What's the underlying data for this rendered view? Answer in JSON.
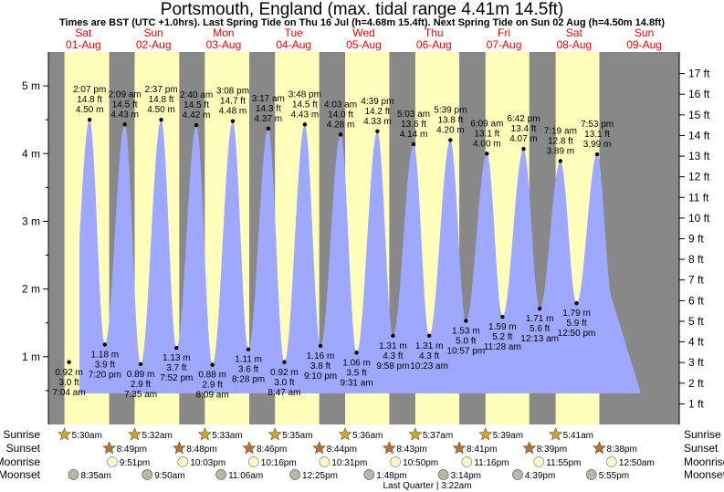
{
  "title": "Portsmouth, England (max. tidal range 4.41m 14.5ft)",
  "subtitle": "Times are BST (UTC +1.0hrs). Last Spring Tide on Thu 16 Jul (h=4.68m 15.4ft). Next Spring Tide on Sun 02 Aug (h=4.50m 14.8ft)",
  "chart_data": {
    "type": "area",
    "x_range_hours": [
      0,
      216
    ],
    "ylim_m": [
      0,
      5.5
    ],
    "yticks_m": [
      {
        "v": 1,
        "label": "1 m"
      },
      {
        "v": 2,
        "label": "2 m"
      },
      {
        "v": 3,
        "label": "3 m"
      },
      {
        "v": 4,
        "label": "4 m"
      },
      {
        "v": 5,
        "label": "5 m"
      }
    ],
    "yticks_ft": [
      {
        "v": 1,
        "label": "1 ft"
      },
      {
        "v": 2,
        "label": "2 ft"
      },
      {
        "v": 3,
        "label": "3 ft"
      },
      {
        "v": 4,
        "label": "4 ft"
      },
      {
        "v": 5,
        "label": "5 ft"
      },
      {
        "v": 6,
        "label": "6 ft"
      },
      {
        "v": 7,
        "label": "7 ft"
      },
      {
        "v": 8,
        "label": "8 ft"
      },
      {
        "v": 9,
        "label": "9 ft"
      },
      {
        "v": 10,
        "label": "10 ft"
      },
      {
        "v": 11,
        "label": "11 ft"
      },
      {
        "v": 12,
        "label": "12 ft"
      },
      {
        "v": 13,
        "label": "13 ft"
      },
      {
        "v": 14,
        "label": "14 ft"
      },
      {
        "v": 15,
        "label": "15 ft"
      },
      {
        "v": 16,
        "label": "16 ft"
      },
      {
        "v": 17,
        "label": "17 ft"
      }
    ],
    "days": [
      {
        "name": "Sat",
        "date": "01-Aug",
        "start": 0
      },
      {
        "name": "Sun",
        "date": "02-Aug",
        "start": 24
      },
      {
        "name": "Mon",
        "date": "03-Aug",
        "start": 48
      },
      {
        "name": "Tue",
        "date": "04-Aug",
        "start": 72
      },
      {
        "name": "Wed",
        "date": "05-Aug",
        "start": 96
      },
      {
        "name": "Thu",
        "date": "06-Aug",
        "start": 120
      },
      {
        "name": "Fri",
        "date": "07-Aug",
        "start": 144
      },
      {
        "name": "Sat",
        "date": "08-Aug",
        "start": 168
      },
      {
        "name": "Sun",
        "date": "09-Aug",
        "start": 192
      }
    ],
    "tides": [
      {
        "t": -0.9,
        "h": 4.45,
        "type": "high",
        "time": "",
        "ft": ""
      },
      {
        "t": 7.067,
        "h": 0.92,
        "type": "low",
        "time": "7:04 am",
        "ft": "3.0 ft"
      },
      {
        "t": 14.117,
        "h": 4.5,
        "type": "high",
        "time": "2:07 pm",
        "ft": "14.8 ft"
      },
      {
        "t": 19.333,
        "h": 1.18,
        "type": "low",
        "time": "7:20 pm",
        "ft": "3.9 ft"
      },
      {
        "t": 26.15,
        "h": 4.43,
        "type": "high",
        "time": "2:09 am",
        "ft": "14.5 ft"
      },
      {
        "t": 31.583,
        "h": 0.89,
        "type": "low",
        "time": "7:35 am",
        "ft": "2.9 ft"
      },
      {
        "t": 38.617,
        "h": 4.5,
        "type": "high",
        "time": "2:37 pm",
        "ft": "14.8 ft"
      },
      {
        "t": 43.867,
        "h": 1.13,
        "type": "low",
        "time": "7:52 pm",
        "ft": "3.7 ft"
      },
      {
        "t": 50.667,
        "h": 4.42,
        "type": "high",
        "time": "2:40 am",
        "ft": "14.5 ft"
      },
      {
        "t": 56.15,
        "h": 0.88,
        "type": "low",
        "time": "8:09 am",
        "ft": "2.9 ft"
      },
      {
        "t": 63.133,
        "h": 4.48,
        "type": "high",
        "time": "3:08 pm",
        "ft": "14.7 ft"
      },
      {
        "t": 68.467,
        "h": 1.11,
        "type": "low",
        "time": "8:28 pm",
        "ft": "3.6 ft"
      },
      {
        "t": 75.283,
        "h": 4.37,
        "type": "high",
        "time": "3:17 am",
        "ft": "14.3 ft"
      },
      {
        "t": 80.783,
        "h": 0.92,
        "type": "low",
        "time": "8:47 am",
        "ft": "3.0 ft"
      },
      {
        "t": 87.8,
        "h": 4.43,
        "type": "high",
        "time": "3:48 pm",
        "ft": "14.5 ft"
      },
      {
        "t": 93.167,
        "h": 1.16,
        "type": "low",
        "time": "9:10 pm",
        "ft": "3.8 ft"
      },
      {
        "t": 100.05,
        "h": 4.28,
        "type": "high",
        "time": "4:03 am",
        "ft": "14.0 ft"
      },
      {
        "t": 105.517,
        "h": 1.06,
        "type": "low",
        "time": "9:31 am",
        "ft": "3.5 ft"
      },
      {
        "t": 112.65,
        "h": 4.33,
        "type": "high",
        "time": "4:39 pm",
        "ft": "14.2 ft"
      },
      {
        "t": 117.967,
        "h": 1.31,
        "type": "low",
        "time": "9:58 pm",
        "ft": "4.3 ft"
      },
      {
        "t": 125.05,
        "h": 4.14,
        "type": "high",
        "time": "5:03 am",
        "ft": "13.6 ft"
      },
      {
        "t": 130.383,
        "h": 1.31,
        "type": "low",
        "time": "10:23 am",
        "ft": "4.3 ft"
      },
      {
        "t": 137.65,
        "h": 4.2,
        "type": "high",
        "time": "5:39 pm",
        "ft": "13.8 ft"
      },
      {
        "t": 142.95,
        "h": 1.53,
        "type": "low",
        "time": "10:57 pm",
        "ft": "5.0 ft"
      },
      {
        "t": 150.15,
        "h": 4.0,
        "type": "high",
        "time": "6:09 am",
        "ft": "13.1 ft"
      },
      {
        "t": 155.467,
        "h": 1.59,
        "type": "low",
        "time": "11:28 am",
        "ft": "5.2 ft"
      },
      {
        "t": 162.7,
        "h": 4.07,
        "type": "high",
        "time": "6:42 pm",
        "ft": "13.4 ft"
      },
      {
        "t": 168.217,
        "h": 1.71,
        "type": "low",
        "time": "12:13 am",
        "ft": "5.6 ft"
      },
      {
        "t": 175.317,
        "h": 3.89,
        "type": "high",
        "time": "7:19 am",
        "ft": "12.8 ft"
      },
      {
        "t": 180.833,
        "h": 1.79,
        "type": "low",
        "time": "12:50 pm",
        "ft": "5.9 ft"
      },
      {
        "t": 187.883,
        "h": 3.99,
        "type": "high",
        "time": "7:53 pm",
        "ft": "13.1 ft"
      },
      {
        "t": 193.1,
        "h": 1.85,
        "type": "low",
        "time": "",
        "ft": ""
      }
    ],
    "daylight": [
      {
        "rise": 5.5,
        "set": 20.817
      },
      {
        "rise": 29.533,
        "set": 44.8
      },
      {
        "rise": 53.55,
        "set": 68.767
      },
      {
        "rise": 77.583,
        "set": 92.733
      },
      {
        "rise": 101.6,
        "set": 116.717
      },
      {
        "rise": 125.617,
        "set": 140.683
      },
      {
        "rise": 149.65,
        "set": 164.65
      },
      {
        "rise": 173.683,
        "set": 188.633
      }
    ],
    "row_labels": [
      "Sunrise",
      "Sunset",
      "Moonrise",
      "Moonset"
    ],
    "sunrise": [
      {
        "t": 5.5,
        "label": "5:30am"
      },
      {
        "t": 29.533,
        "label": "5:32am"
      },
      {
        "t": 53.55,
        "label": "5:33am"
      },
      {
        "t": 77.583,
        "label": "5:35am"
      },
      {
        "t": 101.6,
        "label": "5:36am"
      },
      {
        "t": 125.617,
        "label": "5:37am"
      },
      {
        "t": 149.65,
        "label": "5:39am"
      },
      {
        "t": 173.683,
        "label": "5:41am"
      }
    ],
    "sunset": [
      {
        "t": 20.817,
        "label": "8:49pm"
      },
      {
        "t": 44.8,
        "label": "8:48pm"
      },
      {
        "t": 68.767,
        "label": "8:46pm"
      },
      {
        "t": 92.733,
        "label": "8:44pm"
      },
      {
        "t": 116.717,
        "label": "8:43pm"
      },
      {
        "t": 140.683,
        "label": "8:41pm"
      },
      {
        "t": 164.65,
        "label": "8:39pm"
      },
      {
        "t": 188.633,
        "label": "8:38pm"
      }
    ],
    "moonrise": [
      {
        "t": 21.85,
        "label": "9:51pm"
      },
      {
        "t": 46.05,
        "label": "10:03pm"
      },
      {
        "t": 70.267,
        "label": "10:16pm"
      },
      {
        "t": 94.517,
        "label": "10:31pm"
      },
      {
        "t": 118.833,
        "label": "10:50pm"
      },
      {
        "t": 143.267,
        "label": "11:16pm"
      },
      {
        "t": 167.917,
        "label": "11:55pm"
      },
      {
        "t": 192.833,
        "label": "12:50am"
      }
    ],
    "moonset": [
      {
        "t": 8.583,
        "label": "8:35am"
      },
      {
        "t": 33.833,
        "label": "9:50am"
      },
      {
        "t": 59.1,
        "label": "11:06am"
      },
      {
        "t": 84.417,
        "label": "12:25pm"
      },
      {
        "t": 109.8,
        "label": "1:48pm"
      },
      {
        "t": 135.233,
        "label": "3:14pm"
      },
      {
        "t": 160.65,
        "label": "4:39pm"
      },
      {
        "t": 185.917,
        "label": "5:55pm"
      }
    ],
    "moon_phase": "Last Quarter | 3:22am",
    "colors": {
      "night": "#888888",
      "day": "#ffffbb",
      "water": "#9fa8ff",
      "day_label": "#ff0000",
      "sun_star": "#c8a830",
      "sunset_star": "#b8703a",
      "moonrise": "#ffffcc",
      "moonset": "#b8b8a8"
    }
  }
}
